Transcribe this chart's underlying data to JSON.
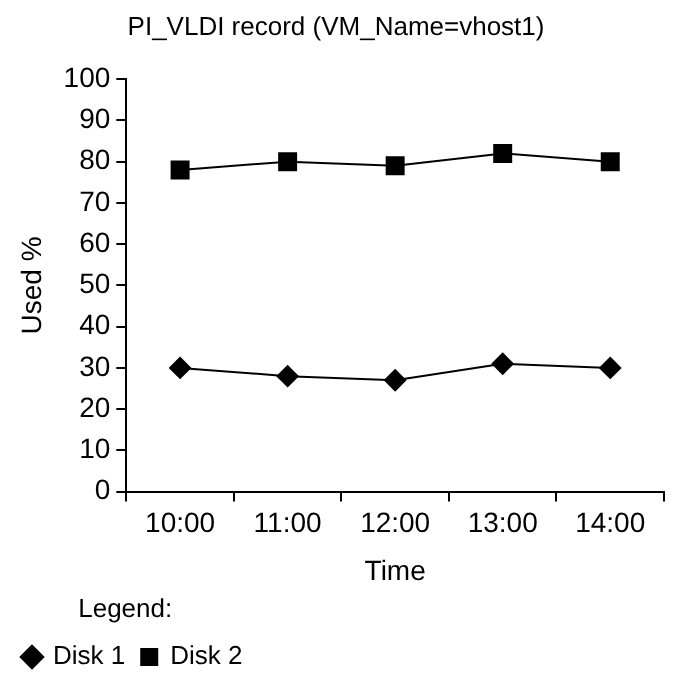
{
  "chart_data": {
    "type": "line",
    "title": "PI_VLDI record (VM_Name=vhost1)",
    "xlabel": "Time",
    "ylabel": "Used %",
    "legend_title": "Legend:",
    "legend": "bottom left",
    "grid": false,
    "categories": [
      "10:00",
      "11:00",
      "12:00",
      "13:00",
      "14:00"
    ],
    "ylim": [
      0,
      100
    ],
    "yticks": [
      0,
      10,
      20,
      30,
      40,
      50,
      60,
      70,
      80,
      90,
      100
    ],
    "series": [
      {
        "name": "Disk 1",
        "color": "#000000",
        "marker": "diamond",
        "values": [
          30,
          28,
          27,
          31,
          30
        ]
      },
      {
        "name": "Disk 2",
        "color": "#000000",
        "marker": "square",
        "values": [
          78,
          80,
          79,
          82,
          80
        ]
      }
    ]
  }
}
